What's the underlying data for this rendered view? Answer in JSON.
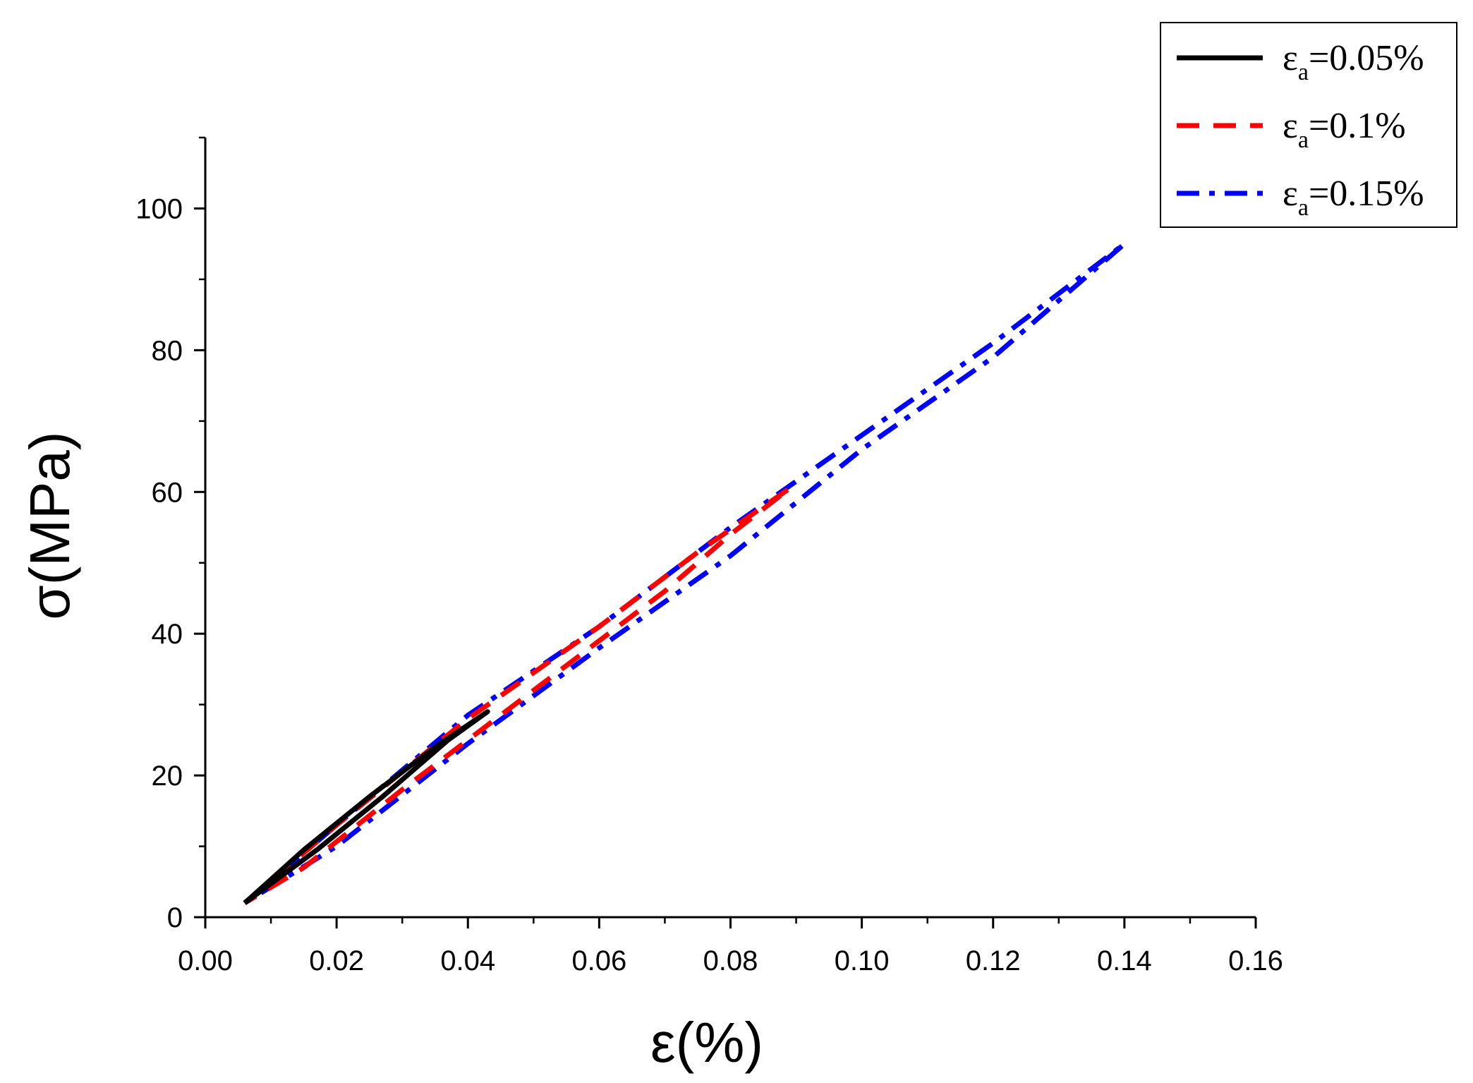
{
  "chart_data": {
    "type": "line",
    "title": "",
    "xlabel": "ε(%)",
    "ylabel": "σ(MPa)",
    "xlim": [
      0,
      0.16
    ],
    "ylim": [
      0,
      110
    ],
    "xticks": [
      "0.00",
      "0.02",
      "0.04",
      "0.06",
      "0.08",
      "0.10",
      "0.12",
      "0.14",
      "0.16"
    ],
    "yticks": [
      "0",
      "20",
      "40",
      "60",
      "80",
      "100"
    ],
    "grid": false,
    "legend_position": "top-right",
    "series": [
      {
        "name": "εa=0.05%",
        "label_main": "ε",
        "label_sub": "a",
        "label_value": "=0.05%",
        "color": "#000000",
        "style": "solid",
        "upper": [
          [
            0.006,
            2.0
          ],
          [
            0.015,
            9.5
          ],
          [
            0.025,
            17.0
          ],
          [
            0.035,
            24.0
          ],
          [
            0.043,
            29.0
          ]
        ],
        "lower": [
          [
            0.043,
            29.0
          ],
          [
            0.037,
            25.0
          ],
          [
            0.027,
            17.0
          ],
          [
            0.017,
            9.5
          ],
          [
            0.006,
            2.0
          ]
        ]
      },
      {
        "name": "εa=0.1%",
        "label_main": "ε",
        "label_sub": "a",
        "label_value": "=0.1%",
        "color": "#ff0000",
        "style": "dashed",
        "upper": [
          [
            0.006,
            2.0
          ],
          [
            0.02,
            13.0
          ],
          [
            0.04,
            28.0
          ],
          [
            0.06,
            41.0
          ],
          [
            0.075,
            51.5
          ],
          [
            0.089,
            60.5
          ]
        ],
        "lower": [
          [
            0.089,
            60.5
          ],
          [
            0.08,
            54.0
          ],
          [
            0.07,
            46.0
          ],
          [
            0.05,
            32.0
          ],
          [
            0.03,
            18.0
          ],
          [
            0.015,
            7.0
          ],
          [
            0.006,
            2.0
          ]
        ]
      },
      {
        "name": "εa=0.15%",
        "label_main": "ε",
        "label_sub": "a",
        "label_value": "=0.15%",
        "color": "#0000ff",
        "style": "dashdot",
        "upper": [
          [
            0.006,
            2.0
          ],
          [
            0.02,
            13.0
          ],
          [
            0.04,
            28.5
          ],
          [
            0.06,
            41.0
          ],
          [
            0.08,
            55.0
          ],
          [
            0.1,
            68.0
          ],
          [
            0.12,
            81.0
          ],
          [
            0.13,
            88.0
          ],
          [
            0.14,
            95.0
          ]
        ],
        "lower": [
          [
            0.14,
            95.0
          ],
          [
            0.13,
            87.0
          ],
          [
            0.12,
            79.0
          ],
          [
            0.1,
            66.0
          ],
          [
            0.08,
            51.0
          ],
          [
            0.06,
            38.0
          ],
          [
            0.04,
            24.5
          ],
          [
            0.02,
            10.0
          ],
          [
            0.006,
            2.0
          ]
        ]
      }
    ]
  }
}
